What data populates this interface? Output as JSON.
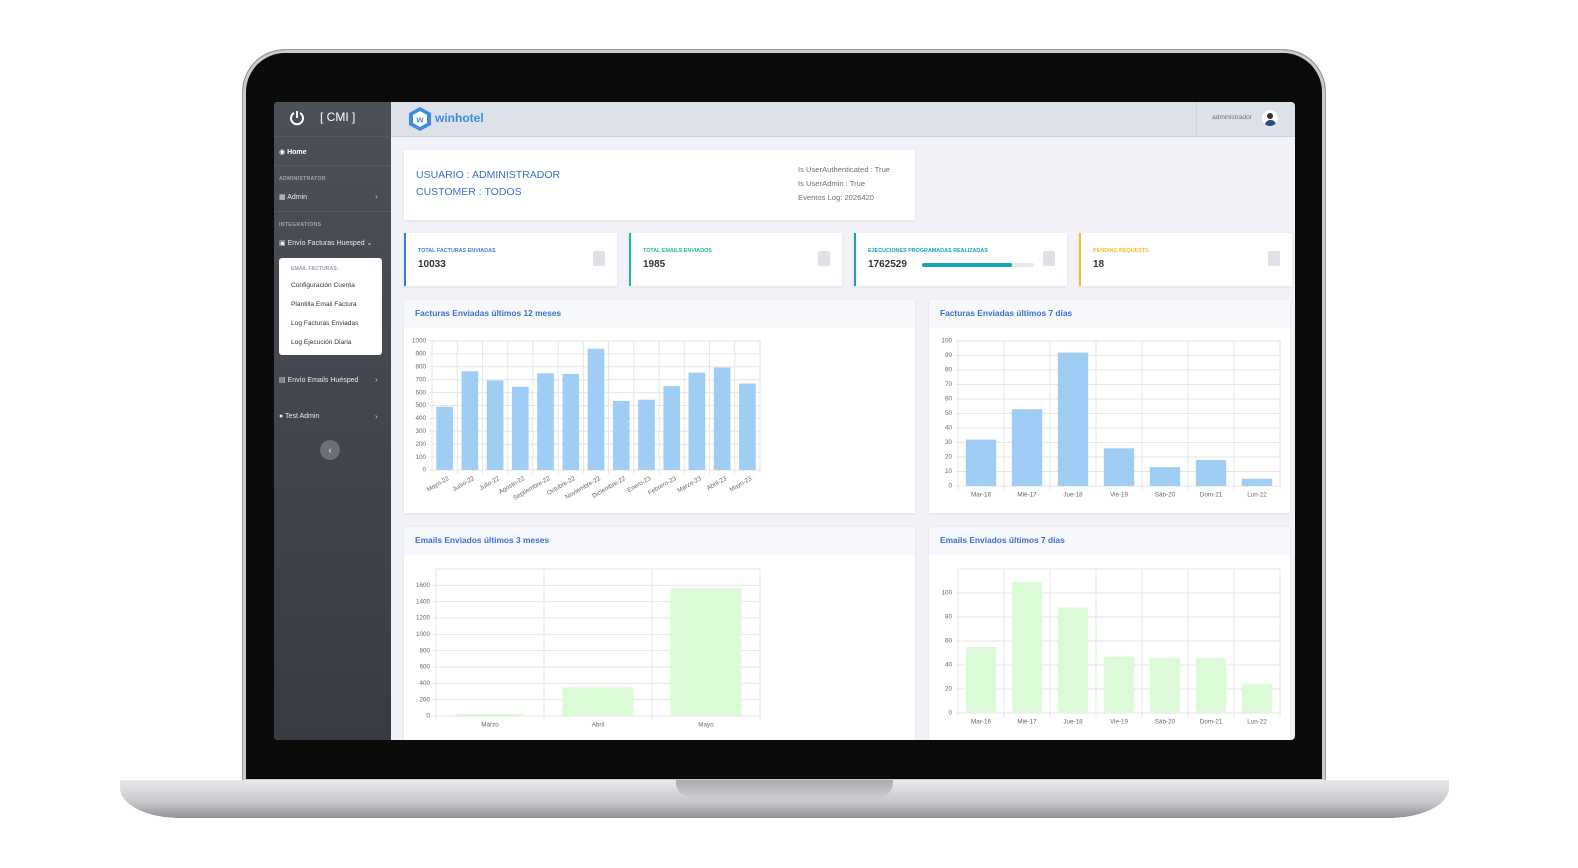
{
  "sidebar": {
    "brand": "[ CMI ]",
    "home": "Home",
    "section_admin": "ADMINISTRATOR",
    "admin": "Admin",
    "section_integrations": "INTEGRATIONS",
    "envio_facturas": "Envío Facturas Huesped",
    "submenu_title": "EMAIL FACTURAS:",
    "submenu": [
      "Configuración Cuenta",
      "Plantilla Email Factura",
      "Log Facturas Enviadas",
      "Log Ejecución Diaria"
    ],
    "envio_emails": "Envío Emails Huésped",
    "test_admin": "Test Admin"
  },
  "header": {
    "logo": "winhotel",
    "user": "administrador"
  },
  "info": {
    "usuario": "USUARIO : ADMINISTRADOR",
    "customer": "CUSTOMER : TODOS",
    "authenticated": "Is UserAuthenticated : True",
    "admin": "Is UserAdmin : True",
    "eventos": "Eventos Log: 2026420"
  },
  "stats": [
    {
      "label": "TOTAL FACTURAS ENVIADAS",
      "value": 10033,
      "color": "#3b7ddd"
    },
    {
      "label": "TOTAL EMAILS ENVIADOS",
      "value": 1985,
      "color": "#1cbb8c"
    },
    {
      "label": "EJECUCIONES PROGRAMADAS REALIZADAS",
      "value": 1762529,
      "color": "#17a2b8",
      "progress": 80
    },
    {
      "label": "PENDING REQUESTS",
      "value": 18,
      "color": "#fcb92c"
    }
  ],
  "charts": [
    {
      "type": "bar",
      "title": "Facturas Enviadas últimos 12 meses",
      "categories": [
        "Mayo-22",
        "Junio-22",
        "Julio-22",
        "Agosto-22",
        "Septiembre-22",
        "Octubre-22",
        "Noviembre-22",
        "Diciembre-22",
        "Enero-23",
        "Febrero-23",
        "Marzo-23",
        "Abril-23",
        "Mayo-23"
      ],
      "values": [
        490,
        765,
        695,
        645,
        750,
        745,
        940,
        535,
        545,
        650,
        755,
        795,
        670
      ],
      "color": "#9fcdf4",
      "ylim": [
        0,
        1000
      ],
      "yticks": [
        0,
        100,
        200,
        300,
        400,
        500,
        600,
        700,
        800,
        900,
        1000
      ],
      "grid": true
    },
    {
      "type": "bar",
      "title": "Facturas Enviadas últimos 7 días",
      "categories": [
        "Mar-16",
        "Mié-17",
        "Jue-18",
        "Vie-19",
        "Sáb-20",
        "Dom-21",
        "Lun-22"
      ],
      "values": [
        32,
        53,
        92,
        26,
        13,
        18,
        5
      ],
      "color": "#9fcdf4",
      "ylim": [
        0,
        100
      ],
      "yticks": [
        0,
        10,
        20,
        30,
        40,
        50,
        60,
        70,
        80,
        90,
        100
      ],
      "grid": true
    },
    {
      "type": "bar",
      "title": "Emails Enviados últimos 3 meses",
      "categories": [
        "Marzo",
        "Abril",
        "Mayo"
      ],
      "values": [
        25,
        350,
        1560
      ],
      "color": "#dcf9d8",
      "ylim": [
        0,
        1800
      ],
      "yticks": [
        0,
        200,
        400,
        600,
        800,
        1000,
        1200,
        1400,
        1600
      ],
      "grid": true
    },
    {
      "type": "bar",
      "title": "Emails Enviados últimos 7 días",
      "categories": [
        "Mar-16",
        "Mié-17",
        "Jue-18",
        "Vie-19",
        "Sáb-20",
        "Dom-21",
        "Lun-22"
      ],
      "values": [
        55,
        109,
        88,
        47,
        46,
        46,
        24
      ],
      "color": "#dcf9d8",
      "ylim": [
        0,
        120
      ],
      "yticks": [
        0,
        20,
        40,
        60,
        80,
        100
      ],
      "grid": true
    }
  ]
}
